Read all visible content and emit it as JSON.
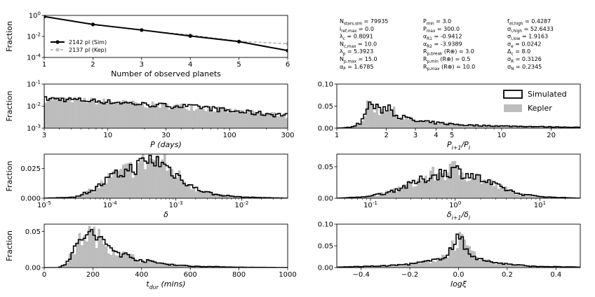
{
  "colors": {
    "sim": "#000000",
    "kep": "#bdbdbd",
    "kep_line": "#a8a8a8"
  },
  "params": [
    [
      "N_stars,sim = 79935",
      "i_ref,max = 0.0",
      "λ_c = 0.8091",
      "N_c,max = 10.0",
      "λ_p = 5.3923",
      "N_p,max = 15.0",
      "α_P = 1.6785"
    ],
    [
      "P_min = 3.0",
      "P_max = 300.0",
      "α_R1 = -0.9412",
      "α_R2 = -3.9389",
      "R_p,break (R⊕) = 3.0",
      "R_p,min (R⊕) = 0.5",
      "R_p,max (R⊕) = 10.0"
    ],
    [
      "f_σi,high = 0.4287",
      "σ_i,high = 52.6433",
      "σ_i,low = 1.9163",
      "σ_e = 0.0242",
      "Δ_c = 8.0",
      "σ_R = 0.3126",
      "σ_N = 0.2345"
    ]
  ],
  "legend_top": {
    "sim": "2142 pl (Sim)",
    "kep": "2137 pl (Kep)"
  },
  "legend_right": {
    "sim": "Simulated",
    "kep": "Kepler"
  },
  "chart_data": [
    {
      "id": "multiplicity",
      "type": "line",
      "title": "",
      "xlabel": "Number of observed planets",
      "ylabel": "Fraction",
      "yscale": "log",
      "xlim": [
        1,
        6
      ],
      "ylim": [
        0.0001,
        1
      ],
      "xticks": [
        "1",
        "2",
        "3",
        "4",
        "5",
        "6"
      ],
      "yticks": [
        {
          "v": 1,
          "t": "10^0"
        },
        {
          "v": 0.01,
          "t": "10^-2"
        },
        {
          "v": 0.0001,
          "t": "10^-4"
        }
      ],
      "x": [
        1,
        2,
        3,
        4,
        5,
        6
      ],
      "series": [
        {
          "name": "2142 pl (Sim)",
          "values": [
            0.78,
            0.14,
            0.041,
            0.011,
            0.0032,
            0.00045
          ]
        },
        {
          "name": "2137 pl (Kep)",
          "values": [
            0.8,
            0.13,
            0.038,
            0.014,
            0.0035,
            0.002
          ]
        }
      ]
    },
    {
      "id": "period",
      "type": "histogram",
      "xlabel": "P (days)",
      "ylabel": "Fraction",
      "xscale": "log",
      "yscale": "log",
      "xlim": [
        3,
        300
      ],
      "ylim": [
        0.001,
        0.1
      ],
      "xticks": [
        "3",
        "10",
        "30",
        "100",
        "300"
      ],
      "yticks": [
        {
          "v": 0.1,
          "t": "10^-1"
        },
        {
          "v": 0.01,
          "t": "10^-2"
        },
        {
          "v": 0.001,
          "t": "10^-3"
        }
      ],
      "bins": 100,
      "profile": [
        [
          3,
          0.022
        ],
        [
          5,
          0.02
        ],
        [
          10,
          0.016
        ],
        [
          20,
          0.012
        ],
        [
          40,
          0.01
        ],
        [
          60,
          0.009
        ],
        [
          100,
          0.006
        ],
        [
          200,
          0.0045
        ],
        [
          300,
          0.004
        ]
      ]
    },
    {
      "id": "period_ratio",
      "type": "histogram",
      "xlabel": "P_{i+1}/P_i",
      "ylabel": "",
      "xscale": "log",
      "yscale": "linear",
      "xlim": [
        1,
        30
      ],
      "ylim": [
        0,
        0.1
      ],
      "xticks": [
        "1",
        "2",
        "3",
        "4",
        "5",
        "10",
        "20"
      ],
      "yticks": [
        "0.00",
        "0.05",
        "0.10"
      ],
      "bins": 100,
      "profile": [
        [
          1,
          0
        ],
        [
          1.2,
          0.002
        ],
        [
          1.4,
          0.012
        ],
        [
          1.55,
          0.05
        ],
        [
          1.65,
          0.057
        ],
        [
          1.8,
          0.038
        ],
        [
          2.05,
          0.052
        ],
        [
          2.2,
          0.036
        ],
        [
          2.5,
          0.025
        ],
        [
          3,
          0.016
        ],
        [
          4,
          0.012
        ],
        [
          6,
          0.007
        ],
        [
          10,
          0.005
        ],
        [
          20,
          0.003
        ],
        [
          30,
          0.002
        ]
      ]
    },
    {
      "id": "depth",
      "type": "histogram",
      "xlabel": "δ",
      "ylabel": "Fraction",
      "xscale": "log",
      "yscale": "linear",
      "xlim": [
        1e-05,
        0.05
      ],
      "ylim": [
        0,
        0.037
      ],
      "xticks": [
        "10^-5",
        "10^-4",
        "10^-3",
        "10^-2"
      ],
      "yticks": [
        "0.000",
        "0.025"
      ],
      "bins": 100,
      "profile": [
        [
          1e-05,
          0
        ],
        [
          3e-05,
          0.001
        ],
        [
          6e-05,
          0.008
        ],
        [
          0.0001,
          0.017
        ],
        [
          0.0002,
          0.024
        ],
        [
          0.0004,
          0.032
        ],
        [
          0.0006,
          0.03
        ],
        [
          0.001,
          0.02
        ],
        [
          0.002,
          0.008
        ],
        [
          0.004,
          0.003
        ],
        [
          0.01,
          0.001
        ],
        [
          0.05,
          0
        ]
      ]
    },
    {
      "id": "depth_ratio",
      "type": "histogram",
      "xlabel": "δ_{i+1}/δ_i",
      "ylabel": "",
      "xscale": "log",
      "yscale": "linear",
      "xlim": [
        0.04,
        30
      ],
      "ylim": [
        0,
        0.07
      ],
      "xticks": [
        "10^-1",
        "10^0",
        "10^1"
      ],
      "yticks": [
        "0.00",
        "0.05"
      ],
      "bins": 100,
      "profile": [
        [
          0.04,
          0
        ],
        [
          0.08,
          0.002
        ],
        [
          0.15,
          0.008
        ],
        [
          0.3,
          0.022
        ],
        [
          0.6,
          0.038
        ],
        [
          1,
          0.045
        ],
        [
          1.6,
          0.036
        ],
        [
          3,
          0.02
        ],
        [
          6,
          0.006
        ],
        [
          12,
          0.002
        ],
        [
          30,
          0
        ]
      ]
    },
    {
      "id": "duration",
      "type": "histogram",
      "xlabel": "t_dur (mins)",
      "ylabel": "Fraction",
      "xscale": "linear",
      "yscale": "linear",
      "xlim": [
        0,
        1000
      ],
      "ylim": [
        0,
        0.06
      ],
      "xticks": [
        "0",
        "200",
        "400",
        "600",
        "800",
        "1000"
      ],
      "yticks": [
        "0.00",
        "0.05"
      ],
      "bins": 100,
      "profile": [
        [
          0,
          0
        ],
        [
          60,
          0
        ],
        [
          90,
          0.006
        ],
        [
          120,
          0.022
        ],
        [
          150,
          0.038
        ],
        [
          170,
          0.048
        ],
        [
          200,
          0.045
        ],
        [
          250,
          0.033
        ],
        [
          300,
          0.021
        ],
        [
          400,
          0.01
        ],
        [
          500,
          0.005
        ],
        [
          600,
          0.002
        ],
        [
          800,
          0.0005
        ],
        [
          1000,
          0
        ]
      ]
    },
    {
      "id": "logxi",
      "type": "histogram",
      "xlabel": "logξ",
      "ylabel": "",
      "xscale": "linear",
      "yscale": "linear",
      "xlim": [
        -0.5,
        0.5
      ],
      "ylim": [
        0,
        0.1
      ],
      "xticks": [
        "−0.4",
        "−0.2",
        "0.0",
        "0.2",
        "0.4"
      ],
      "yticks": [
        "0.00",
        "0.05",
        "0.10"
      ],
      "bins": 100,
      "profile": [
        [
          -0.5,
          0.001
        ],
        [
          -0.3,
          0.004
        ],
        [
          -0.2,
          0.008
        ],
        [
          -0.1,
          0.016
        ],
        [
          -0.05,
          0.03
        ],
        [
          0,
          0.068
        ],
        [
          0.05,
          0.032
        ],
        [
          0.1,
          0.016
        ],
        [
          0.2,
          0.008
        ],
        [
          0.3,
          0.003
        ],
        [
          0.5,
          0.001
        ]
      ]
    }
  ]
}
